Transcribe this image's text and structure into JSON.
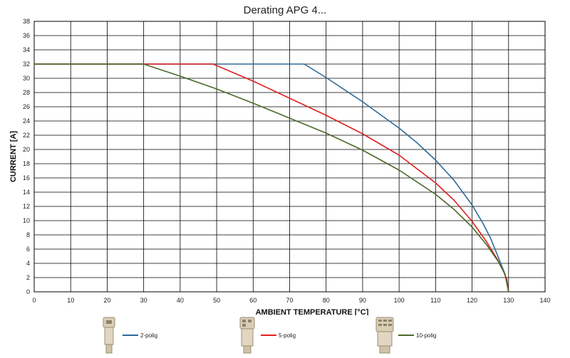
{
  "chart_data": {
    "type": "line",
    "title": "Derating APG 4...",
    "xlabel": "AMBIENT TEMPERATURE [°C]",
    "ylabel": "CURRENT [A]",
    "xlim": [
      0,
      140
    ],
    "ylim": [
      0,
      38
    ],
    "xticks": [
      0,
      10,
      20,
      30,
      40,
      50,
      60,
      70,
      80,
      90,
      100,
      110,
      120,
      130,
      140
    ],
    "yticks": [
      0,
      2,
      4,
      6,
      8,
      10,
      12,
      14,
      16,
      18,
      20,
      22,
      24,
      26,
      28,
      30,
      32,
      34,
      36,
      38
    ],
    "grid": true,
    "legend_position": "bottom",
    "series": [
      {
        "name": "2-polig",
        "color": "#2f6a96",
        "x": [
          0,
          74,
          80,
          90,
          100,
          105,
          110,
          115,
          120,
          123,
          125,
          127,
          128,
          129,
          129.5,
          130
        ],
        "y": [
          32,
          32,
          30.1,
          26.7,
          23.0,
          20.9,
          18.5,
          15.7,
          12.2,
          9.6,
          7.6,
          5.1,
          3.8,
          2.5,
          1.6,
          0
        ]
      },
      {
        "name": "5-polig",
        "color": "#e02020",
        "x": [
          0,
          49,
          60,
          70,
          80,
          90,
          100,
          110,
          115,
          120,
          124,
          127,
          128.5,
          129.5,
          130
        ],
        "y": [
          32,
          32,
          29.6,
          27.2,
          24.8,
          22.2,
          19.2,
          15.3,
          12.9,
          9.9,
          7.0,
          4.5,
          3.0,
          1.8,
          0
        ]
      },
      {
        "name": "10-polig",
        "color": "#4a6a2a",
        "x": [
          0,
          30,
          40,
          50,
          60,
          70,
          80,
          90,
          100,
          110,
          115,
          120,
          124,
          127,
          129,
          130
        ],
        "y": [
          32,
          32,
          30.3,
          28.5,
          26.5,
          24.4,
          22.3,
          19.9,
          17.1,
          13.7,
          11.6,
          9.1,
          6.6,
          4.4,
          2.5,
          0
        ]
      }
    ]
  }
}
